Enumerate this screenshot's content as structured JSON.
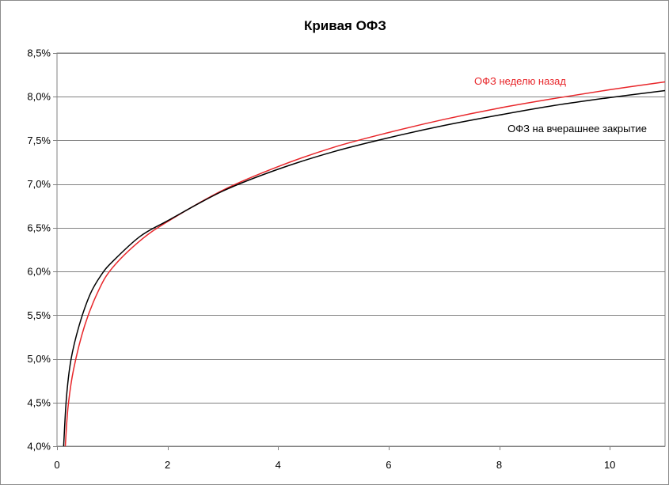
{
  "chart_data": {
    "type": "line",
    "title": "Кривая ОФЗ",
    "xlabel": "",
    "ylabel": "",
    "xlim": [
      0,
      11
    ],
    "ylim": [
      4.0,
      8.5
    ],
    "x_ticks": [
      0,
      2,
      4,
      6,
      8,
      10
    ],
    "x_tick_labels": [
      "0",
      "2",
      "4",
      "6",
      "8",
      "10"
    ],
    "y_ticks": [
      4.0,
      4.5,
      5.0,
      5.5,
      6.0,
      6.5,
      7.0,
      7.5,
      8.0,
      8.5
    ],
    "y_tick_labels": [
      "4,0%",
      "4,5%",
      "5,0%",
      "5,5%",
      "6,0%",
      "6,5%",
      "7,0%",
      "7,5%",
      "8,0%",
      "8,5%"
    ],
    "y_unit": "%",
    "grid": "horizontal",
    "legend": "none",
    "series": [
      {
        "name": "ОФЗ неделю назад",
        "color": "#e8262a",
        "x": [
          0.15,
          0.2,
          0.3,
          0.5,
          0.75,
          1.0,
          1.5,
          2.0,
          3.0,
          4.0,
          5.0,
          6.0,
          7.0,
          8.0,
          9.0,
          10.0,
          11.0
        ],
        "values": [
          4.0,
          4.45,
          4.88,
          5.38,
          5.78,
          6.04,
          6.35,
          6.57,
          6.93,
          7.2,
          7.42,
          7.59,
          7.74,
          7.87,
          7.98,
          8.08,
          8.17
        ]
      },
      {
        "name": "ОФЗ на вчерашнее закрытие",
        "color": "#000000",
        "x": [
          0.12,
          0.17,
          0.25,
          0.4,
          0.6,
          0.8,
          1.0,
          1.5,
          2.0,
          3.0,
          4.0,
          5.0,
          6.0,
          7.0,
          8.0,
          9.0,
          10.0,
          11.0
        ],
        "values": [
          4.0,
          4.55,
          4.98,
          5.38,
          5.74,
          5.96,
          6.11,
          6.4,
          6.58,
          6.92,
          7.17,
          7.37,
          7.53,
          7.67,
          7.79,
          7.9,
          7.99,
          8.07
        ]
      }
    ]
  }
}
